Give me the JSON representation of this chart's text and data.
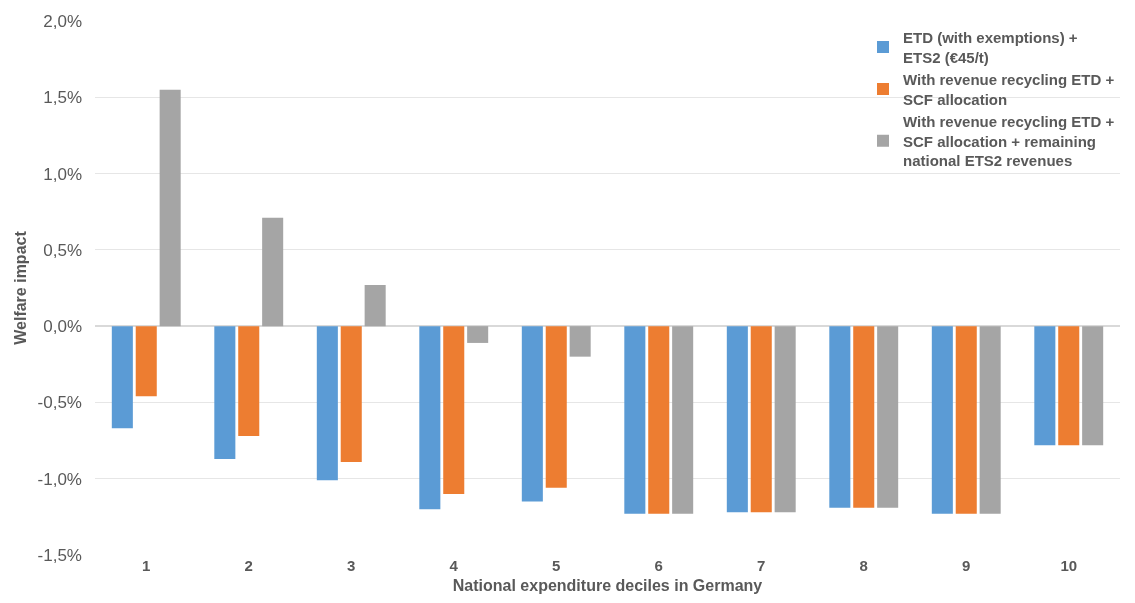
{
  "chart_data": {
    "type": "bar",
    "xlabel": "National expenditure deciles in Germany",
    "ylabel": "Welfare impact",
    "categories": [
      "1",
      "2",
      "3",
      "4",
      "5",
      "6",
      "7",
      "8",
      "9",
      "10"
    ],
    "series": [
      {
        "name": "ETD (with exemptions) +\nETS2 (€45/t)",
        "color": "#5b9bd5",
        "values": [
          -0.67,
          -0.87,
          -1.01,
          -1.2,
          -1.15,
          -1.23,
          -1.22,
          -1.19,
          -1.23,
          -0.78
        ]
      },
      {
        "name": "With revenue recycling ETD +\nSCF allocation",
        "color": "#ed7d31",
        "values": [
          -0.46,
          -0.72,
          -0.89,
          -1.1,
          -1.06,
          -1.23,
          -1.22,
          -1.19,
          -1.23,
          -0.78
        ]
      },
      {
        "name": "With revenue recycling ETD +\nSCF allocation + remaining\nnational ETS2 revenues",
        "color": "#a5a5a5",
        "values": [
          1.55,
          0.71,
          0.27,
          -0.11,
          -0.2,
          -1.23,
          -1.22,
          -1.19,
          -1.23,
          -0.78
        ]
      }
    ],
    "ylim": [
      -1.5,
      2.0
    ],
    "yticks": [
      {
        "value": -1.5,
        "label": "-1,5%"
      },
      {
        "value": -1.0,
        "label": "-1,0%"
      },
      {
        "value": -0.5,
        "label": "-0,5%"
      },
      {
        "value": 0.0,
        "label": "0,0%"
      },
      {
        "value": 0.5,
        "label": "0,5%"
      },
      {
        "value": 1.0,
        "label": "1,0%"
      },
      {
        "value": 1.5,
        "label": "1,5%"
      },
      {
        "value": 2.0,
        "label": "2,0%"
      }
    ],
    "grid": "y",
    "legend": "top right"
  }
}
